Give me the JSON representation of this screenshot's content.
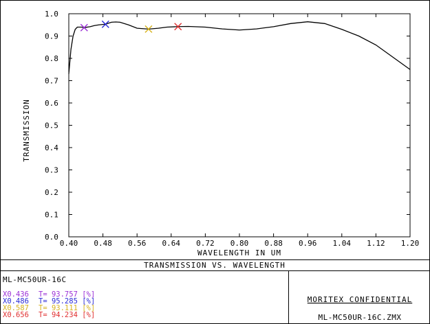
{
  "chart_data": {
    "type": "line",
    "title": "TRANSMISSION VS. WAVELENGTH",
    "xlabel": "WAVELENGTH IN UM",
    "ylabel": "TRANSMISSION",
    "xlim": [
      0.4,
      1.2
    ],
    "ylim": [
      0.0,
      1.0
    ],
    "xticks": [
      "0.40",
      "0.48",
      "0.56",
      "0.64",
      "0.72",
      "0.80",
      "0.88",
      "0.96",
      "1.04",
      "1.12",
      "1.20"
    ],
    "yticks": [
      "0.0",
      "0.1",
      "0.2",
      "0.3",
      "0.4",
      "0.5",
      "0.6",
      "0.7",
      "0.8",
      "0.9",
      "1.0"
    ],
    "grid": false,
    "series": [
      {
        "x": [
          0.4,
          0.405,
          0.41,
          0.415,
          0.42,
          0.43,
          0.436,
          0.45,
          0.46,
          0.47,
          0.48,
          0.486,
          0.5,
          0.51,
          0.52,
          0.54,
          0.56,
          0.587,
          0.61,
          0.63,
          0.656,
          0.68,
          0.72,
          0.76,
          0.8,
          0.84,
          0.88,
          0.92,
          0.96,
          1.0,
          1.04,
          1.08,
          1.12,
          1.16,
          1.2
        ],
        "y": [
          0.73,
          0.84,
          0.9,
          0.93,
          0.94,
          0.94,
          0.9376,
          0.942,
          0.947,
          0.95,
          0.952,
          0.953,
          0.962,
          0.963,
          0.962,
          0.95,
          0.935,
          0.9311,
          0.935,
          0.94,
          0.9423,
          0.943,
          0.94,
          0.932,
          0.927,
          0.932,
          0.942,
          0.956,
          0.964,
          0.956,
          0.93,
          0.9,
          0.86,
          0.805,
          0.75
        ]
      }
    ],
    "markers": [
      {
        "x": 0.436,
        "y": 0.93757,
        "color": "#9b2fd6",
        "label": "X0.436",
        "t": "T= 93.757  [%]"
      },
      {
        "x": 0.486,
        "y": 0.95285,
        "color": "#2b2bd6",
        "label": "X0.486",
        "t": "T= 95.285  [%]"
      },
      {
        "x": 0.587,
        "y": 0.93111,
        "color": "#d6b21f",
        "label": "X0.587",
        "t": "T= 93.111  [%]"
      },
      {
        "x": 0.656,
        "y": 0.94234,
        "color": "#e03030",
        "label": "X0.656",
        "t": "T= 94.234  [%]"
      }
    ]
  },
  "footer": {
    "title": "TRANSMISSION VS. WAVELENGTH",
    "lens_name": "ML-MC50UR-16C",
    "confidential": "MORITEX CONFIDENTIAL",
    "file_name": "ML-MC50UR-16C.ZMX"
  }
}
